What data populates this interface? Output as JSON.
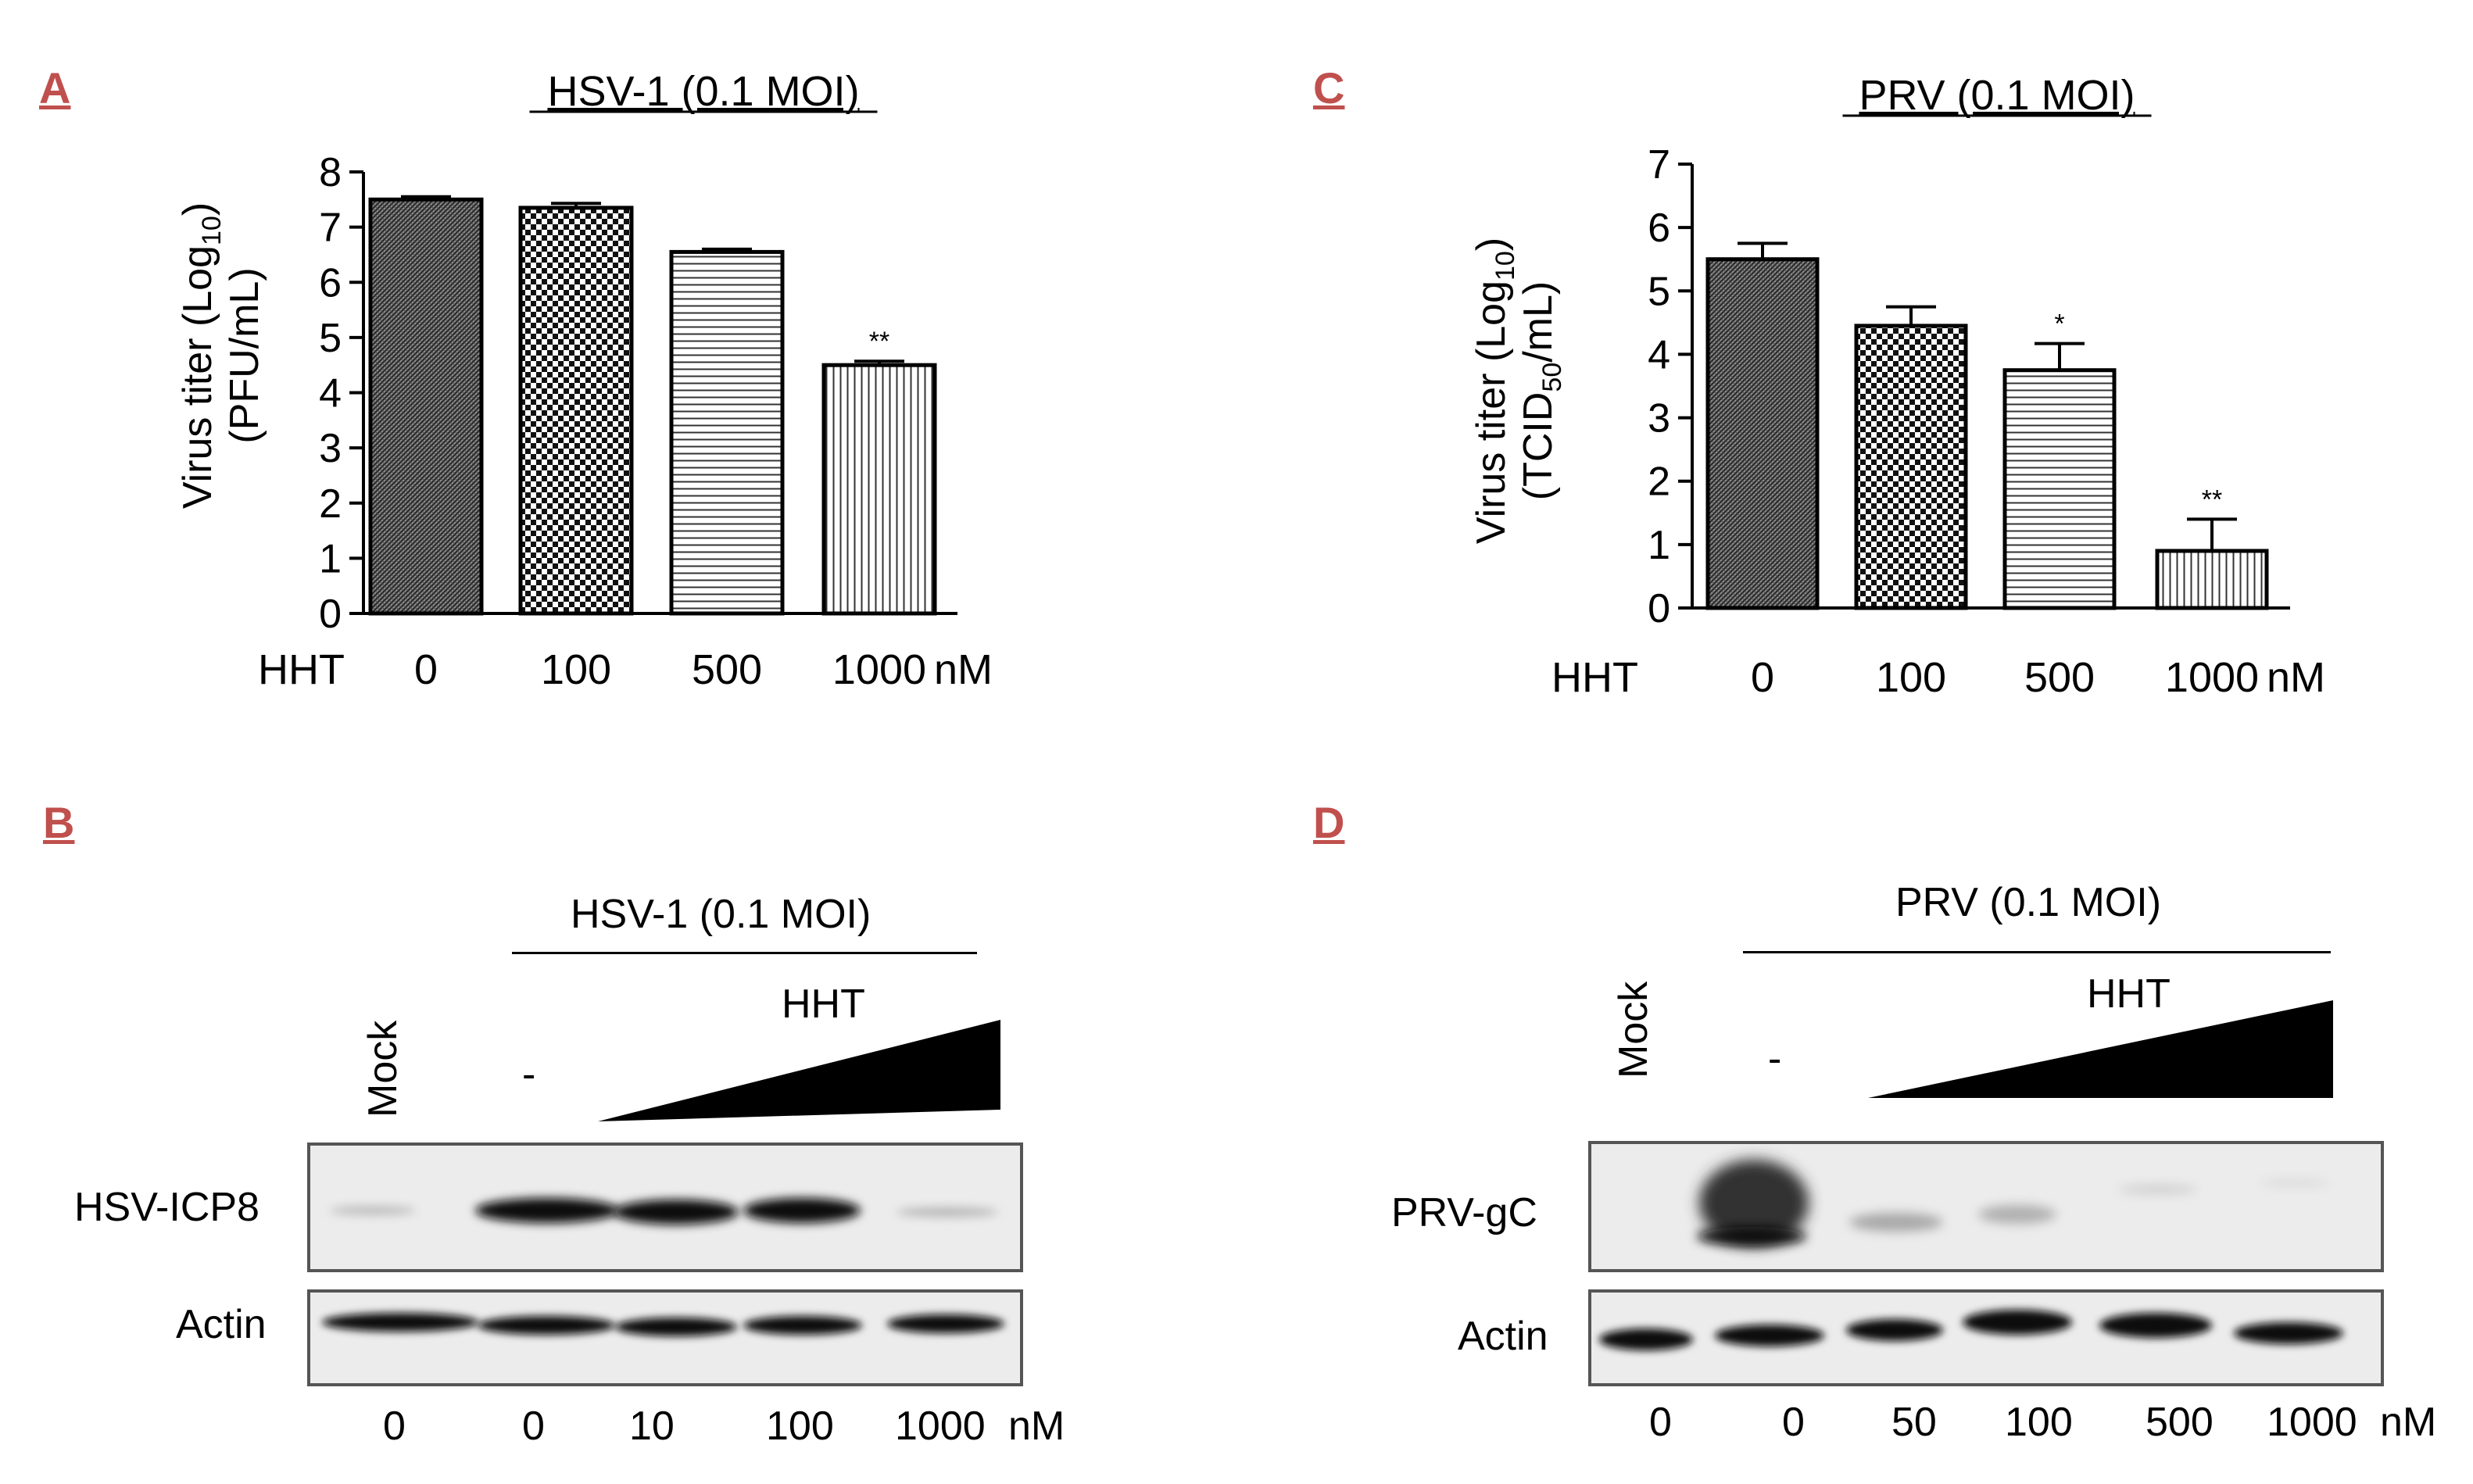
{
  "panels": {
    "A": {
      "letter": "A"
    },
    "B": {
      "letter": "B"
    },
    "C": {
      "letter": "C"
    },
    "D": {
      "letter": "D"
    }
  },
  "chart_data": [
    {
      "panel": "A",
      "type": "bar",
      "title": "HSV-1 (0.1 MOI)",
      "ylabel_line1": "Virus titer (Log",
      "ylabel_sub": "10",
      "ylabel_line1_end": ")",
      "ylabel_line2": "(PFU/mL)",
      "treatment_label": "HHT",
      "unit_label": "nM",
      "categories": [
        "0",
        "100",
        "500",
        "1000"
      ],
      "values": [
        7.5,
        7.35,
        6.55,
        4.5
      ],
      "errors": [
        0.05,
        0.08,
        0.05,
        0.07
      ],
      "significance": [
        "",
        "",
        "",
        "**"
      ],
      "yticks": [
        0,
        1,
        2,
        3,
        4,
        5,
        6,
        7,
        8
      ],
      "ylim": [
        0,
        8
      ],
      "patterns": [
        "dense-hatch",
        "checker",
        "hlines",
        "vlines"
      ]
    },
    {
      "panel": "C",
      "type": "bar",
      "title": "PRV (0.1 MOI)",
      "ylabel_line1": "Virus titer (Log",
      "ylabel_sub": "10",
      "ylabel_line1_end": ")",
      "ylabel_line2_pre": "(TCID",
      "ylabel_line2_sub": "50",
      "ylabel_line2_post": "/mL)",
      "treatment_label": "HHT",
      "unit_label": "nM",
      "categories": [
        "0",
        "100",
        "500",
        "1000"
      ],
      "values": [
        5.5,
        4.45,
        3.75,
        0.9
      ],
      "errors": [
        0.25,
        0.3,
        0.42,
        0.5
      ],
      "significance": [
        "",
        "",
        "*",
        "**"
      ],
      "yticks": [
        0,
        1,
        2,
        3,
        4,
        5,
        6,
        7
      ],
      "ylim": [
        0,
        7
      ],
      "patterns": [
        "dense-hatch",
        "checker",
        "hlines",
        "vlines"
      ]
    }
  ],
  "blots": {
    "B": {
      "virus_label": "HSV-1 (0.1 MOI)",
      "treatment_label": "HHT",
      "mock_label": "Mock",
      "dash_label": "-",
      "rows": [
        "HSV-ICP8",
        "Actin"
      ],
      "lanes": [
        "0",
        "0",
        "10",
        "100",
        "1000"
      ],
      "unit_label": "nM"
    },
    "D": {
      "virus_label": "PRV (0.1 MOI)",
      "treatment_label": "HHT",
      "mock_label": "Mock",
      "dash_label": "-",
      "rows": [
        "PRV-gC",
        "Actin"
      ],
      "lanes": [
        "0",
        "0",
        "50",
        "100",
        "500",
        "1000"
      ],
      "unit_label": "nM"
    }
  }
}
